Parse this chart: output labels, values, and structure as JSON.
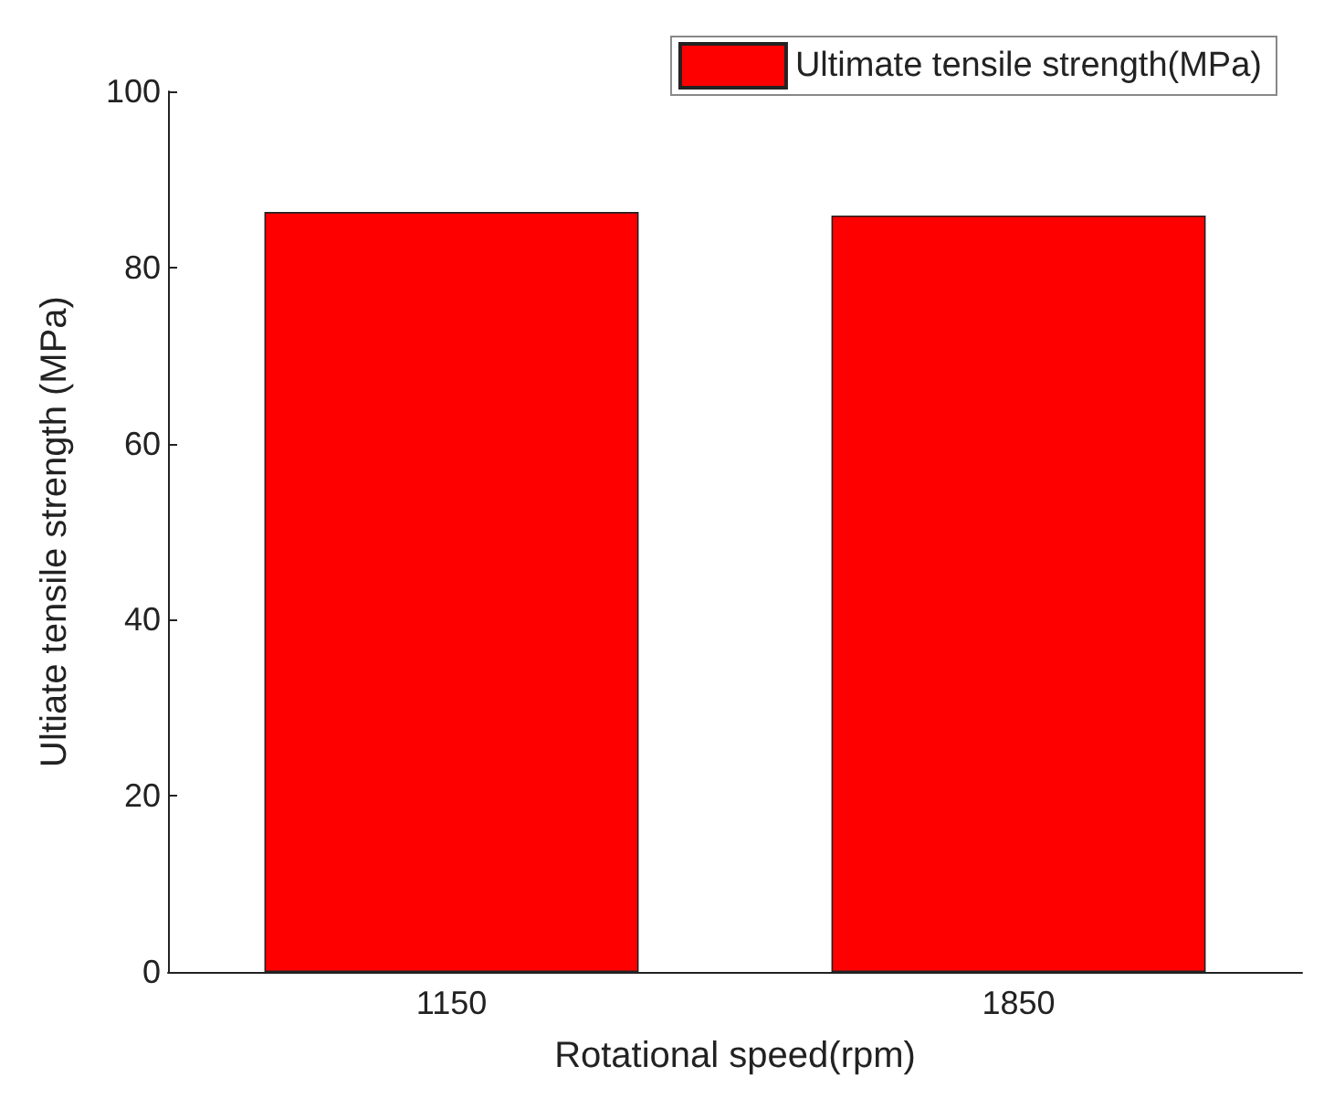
{
  "chart_data": {
    "type": "bar",
    "xlabel": "Rotational speed(rpm)",
    "ylabel": "Ultiate tensile strength (MPa)",
    "categories": [
      "1150",
      "1850"
    ],
    "series": [
      {
        "name": "Ultimate tensile strength(MPa)",
        "color": "#ff0000",
        "values": [
          86.3,
          85.9
        ]
      }
    ],
    "ylim": [
      0,
      100
    ],
    "yticks": [
      0,
      20,
      40,
      60,
      80,
      100
    ],
    "grid": false,
    "legend": "top right"
  }
}
